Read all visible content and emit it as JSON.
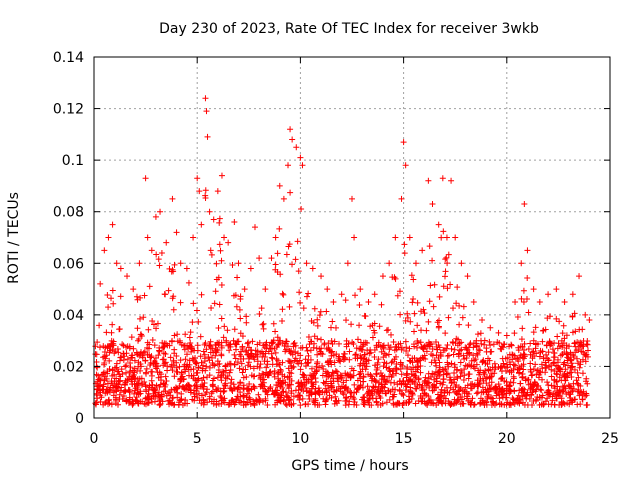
{
  "chart_data": {
    "type": "scatter",
    "title": "Day 230 of 2023, Rate Of TEC Index for receiver 3wkb",
    "xlabel": "GPS time / hours",
    "ylabel": "ROTI / TECUs",
    "xlim": [
      0,
      25
    ],
    "ylim": [
      0,
      0.14
    ],
    "x_ticks": [
      0,
      5,
      10,
      15,
      20,
      25
    ],
    "x_tick_labels": [
      "0",
      "5",
      "10",
      "15",
      "20",
      "25"
    ],
    "y_ticks": [
      0,
      0.02,
      0.04,
      0.06,
      0.08,
      0.1,
      0.12,
      0.14
    ],
    "y_tick_labels": [
      "0",
      "0.02",
      "0.04",
      "0.06",
      "0.08",
      "0.1",
      "0.12",
      "0.14"
    ],
    "grid": true,
    "marker": "plus",
    "color": "#ff0000",
    "series": [
      {
        "name": "ROTI",
        "points": [
          [
            0.3,
            0.052
          ],
          [
            0.5,
            0.065
          ],
          [
            0.7,
            0.07
          ],
          [
            0.9,
            0.075
          ],
          [
            1.1,
            0.06
          ],
          [
            1.3,
            0.058
          ],
          [
            1.6,
            0.055
          ],
          [
            1.9,
            0.05
          ],
          [
            2.2,
            0.06
          ],
          [
            2.5,
            0.093
          ],
          [
            2.6,
            0.07
          ],
          [
            2.8,
            0.065
          ],
          [
            3.0,
            0.078
          ],
          [
            3.2,
            0.08
          ],
          [
            3.5,
            0.068
          ],
          [
            3.8,
            0.085
          ],
          [
            4.0,
            0.072
          ],
          [
            4.2,
            0.06
          ],
          [
            4.5,
            0.058
          ],
          [
            4.8,
            0.07
          ],
          [
            5.0,
            0.093
          ],
          [
            5.1,
            0.088
          ],
          [
            5.2,
            0.075
          ],
          [
            5.4,
            0.124
          ],
          [
            5.45,
            0.119
          ],
          [
            5.5,
            0.109
          ],
          [
            5.6,
            0.08
          ],
          [
            5.8,
            0.077
          ],
          [
            6.0,
            0.088
          ],
          [
            6.2,
            0.094
          ],
          [
            6.3,
            0.07
          ],
          [
            6.5,
            0.068
          ],
          [
            6.8,
            0.076
          ],
          [
            7.0,
            0.06
          ],
          [
            7.3,
            0.05
          ],
          [
            7.6,
            0.058
          ],
          [
            7.8,
            0.074
          ],
          [
            8.0,
            0.062
          ],
          [
            8.3,
            0.05
          ],
          [
            8.6,
            0.062
          ],
          [
            8.8,
            0.07
          ],
          [
            9.0,
            0.09
          ],
          [
            9.2,
            0.085
          ],
          [
            9.4,
            0.098
          ],
          [
            9.5,
            0.112
          ],
          [
            9.6,
            0.108
          ],
          [
            9.8,
            0.105
          ],
          [
            10.0,
            0.101
          ],
          [
            10.1,
            0.098
          ],
          [
            10.3,
            0.06
          ],
          [
            10.6,
            0.058
          ],
          [
            11.0,
            0.055
          ],
          [
            11.3,
            0.05
          ],
          [
            11.6,
            0.045
          ],
          [
            12.0,
            0.048
          ],
          [
            12.3,
            0.06
          ],
          [
            12.5,
            0.085
          ],
          [
            12.6,
            0.07
          ],
          [
            12.9,
            0.05
          ],
          [
            13.3,
            0.045
          ],
          [
            13.6,
            0.048
          ],
          [
            14.0,
            0.055
          ],
          [
            14.3,
            0.06
          ],
          [
            14.6,
            0.07
          ],
          [
            14.9,
            0.085
          ],
          [
            15.0,
            0.107
          ],
          [
            15.1,
            0.098
          ],
          [
            15.3,
            0.07
          ],
          [
            15.6,
            0.06
          ],
          [
            15.9,
            0.065
          ],
          [
            16.2,
            0.092
          ],
          [
            16.4,
            0.083
          ],
          [
            16.7,
            0.075
          ],
          [
            16.9,
            0.093
          ],
          [
            17.1,
            0.07
          ],
          [
            17.3,
            0.092
          ],
          [
            17.5,
            0.07
          ],
          [
            17.8,
            0.06
          ],
          [
            18.1,
            0.055
          ],
          [
            18.4,
            0.045
          ],
          [
            18.8,
            0.038
          ],
          [
            19.2,
            0.035
          ],
          [
            19.6,
            0.033
          ],
          [
            20.0,
            0.032
          ],
          [
            20.4,
            0.045
          ],
          [
            20.7,
            0.06
          ],
          [
            20.85,
            0.083
          ],
          [
            21.0,
            0.065
          ],
          [
            21.3,
            0.05
          ],
          [
            21.6,
            0.045
          ],
          [
            22.0,
            0.048
          ],
          [
            22.4,
            0.05
          ],
          [
            22.8,
            0.045
          ],
          [
            23.2,
            0.048
          ],
          [
            23.5,
            0.055
          ],
          [
            23.8,
            0.04
          ],
          [
            24.0,
            0.038
          ]
        ]
      }
    ]
  }
}
